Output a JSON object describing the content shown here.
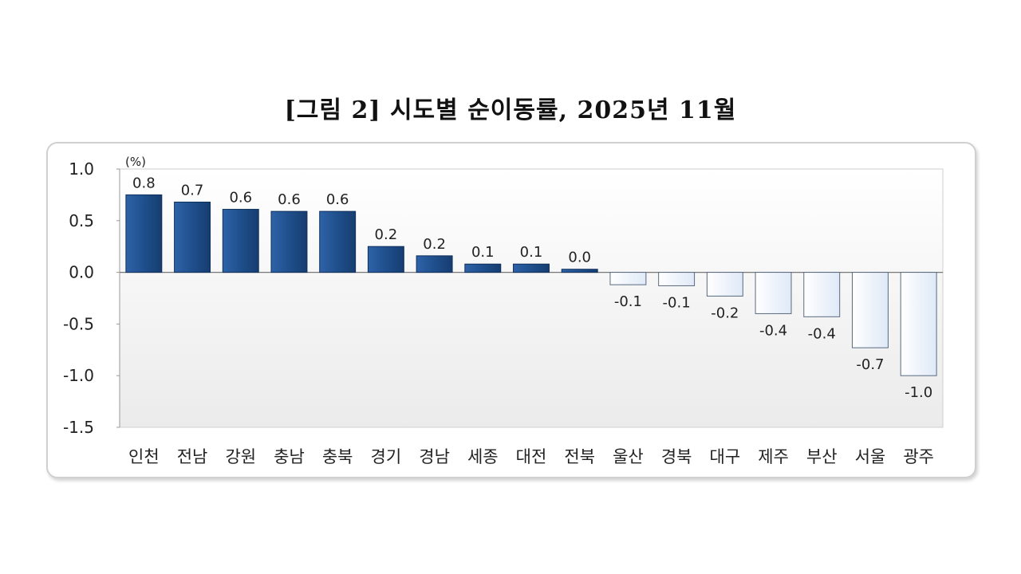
{
  "title": "[그림 2] 시도별 순이동률, 2025년 11월",
  "chart_data": {
    "type": "bar",
    "unit": "(%)",
    "categories": [
      "인천",
      "전남",
      "강원",
      "충남",
      "충북",
      "경기",
      "경남",
      "세종",
      "대전",
      "전북",
      "울산",
      "경북",
      "대구",
      "제주",
      "부산",
      "서울",
      "광주"
    ],
    "values": [
      0.75,
      0.68,
      0.61,
      0.59,
      0.59,
      0.25,
      0.16,
      0.08,
      0.08,
      0.03,
      -0.12,
      -0.13,
      -0.23,
      -0.4,
      -0.43,
      -0.73,
      -1.0
    ],
    "data_labels": [
      "0.8",
      "0.7",
      "0.6",
      "0.6",
      "0.6",
      "0.2",
      "0.2",
      "0.1",
      "0.1",
      "0.0",
      "-0.1",
      "-0.1",
      "-0.2",
      "-0.4",
      "-0.4",
      "-0.7",
      "-1.0"
    ],
    "ylim": [
      -1.5,
      1.0
    ],
    "yticks": [
      1.0,
      0.5,
      0.0,
      -0.5,
      -1.0,
      -1.5
    ],
    "ytick_labels": [
      "1.0",
      "0.5",
      "0.0",
      "-0.5",
      "-1.0",
      "-1.5"
    ],
    "colors": {
      "positive": "#1f4f8c",
      "positive_edge": "#0f2f5c",
      "negative": "#eef4fc",
      "negative_edge": "#5a6a80",
      "plot_bg_top": "#ffffff",
      "plot_bg_bottom": "#ebebeb"
    }
  }
}
